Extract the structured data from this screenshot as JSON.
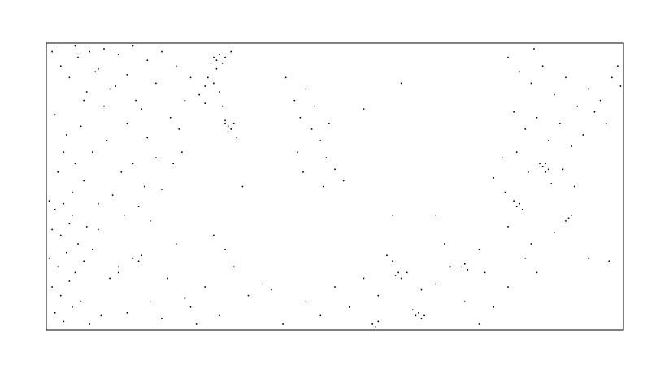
{
  "chart_data": {
    "type": "scatter",
    "color": "#000000",
    "xlim": [
      0,
      2
    ],
    "ylim": [
      0,
      1
    ],
    "x": [
      0.02,
      0.05,
      0.08,
      0.11,
      0.14,
      0.17,
      0.2,
      0.24,
      0.28,
      0.31,
      0.35,
      0.38,
      0.03,
      0.07,
      0.12,
      0.16,
      0.21,
      0.26,
      0.3,
      0.34,
      0.04,
      0.09,
      0.13,
      0.18,
      0.23,
      0.27,
      0.32,
      0.36,
      0.4,
      0.06,
      0.01,
      0.03,
      0.06,
      0.09,
      0.02,
      0.05,
      0.08,
      0.11,
      0.14,
      0.01,
      0.04,
      0.07,
      0.1,
      0.13,
      0.16,
      0.02,
      0.05,
      0.08,
      0.12,
      0.03,
      0.06,
      0.09,
      0.15,
      0.19,
      0.22,
      0.25,
      0.1,
      0.18,
      0.44,
      0.47,
      0.1,
      0.15,
      0.2,
      0.25,
      0.3,
      0.35,
      0.4,
      0.45,
      0.5,
      0.55,
      0.18,
      0.28,
      0.38,
      0.48,
      0.22,
      0.33,
      0.43,
      0.53,
      0.13,
      0.46,
      0.57,
      0.58,
      0.59,
      0.6,
      0.61,
      0.59,
      0.62,
      0.64,
      0.56,
      0.6,
      0.62,
      0.63,
      0.64,
      0.63,
      0.62,
      0.65,
      0.61,
      0.66,
      0.55,
      0.58,
      0.83,
      0.86,
      0.88,
      0.9,
      0.92,
      0.95,
      0.97,
      1.0,
      0.87,
      0.93,
      0.98,
      1.03,
      0.89,
      0.96,
      1.1,
      1.23,
      1.6,
      1.64,
      1.68,
      1.72,
      1.76,
      1.8,
      1.84,
      1.88,
      1.92,
      1.96,
      1.99,
      1.62,
      1.66,
      1.7,
      1.74,
      1.78,
      1.82,
      1.86,
      1.9,
      1.94,
      1.58,
      1.63,
      1.67,
      1.71,
      1.75,
      1.79,
      1.55,
      1.59,
      1.83,
      1.69,
      1.72,
      1.73,
      1.74,
      1.73,
      1.63,
      1.64,
      1.65,
      1.62,
      1.81,
      1.82,
      1.8,
      1.6,
      1.68,
      1.76,
      1.66,
      1.7,
      0.9,
      0.95,
      1.0,
      1.05,
      1.1,
      1.15,
      1.2,
      1.25,
      1.3,
      1.35,
      1.4,
      1.45,
      1.5,
      1.13,
      1.14,
      1.15,
      1.28,
      1.29,
      1.3,
      1.31,
      1.27,
      1.44,
      1.45,
      1.46,
      1.21,
      1.22,
      1.23,
      1.18,
      1.38,
      1.52,
      0.25,
      0.3,
      0.32,
      0.36,
      0.4,
      0.45,
      0.5,
      0.55,
      0.6,
      0.65,
      0.7,
      0.75,
      0.33,
      0.42,
      0.52,
      0.62,
      0.28,
      0.48,
      0.58,
      0.78,
      0.82,
      1.35,
      1.6,
      1.55,
      1.5,
      1.88,
      1.95,
      1.2,
      0.68,
      1.98
    ],
    "values": [
      0.97,
      0.92,
      0.88,
      0.95,
      0.83,
      0.9,
      0.78,
      0.85,
      0.72,
      0.8,
      0.67,
      0.6,
      0.75,
      0.68,
      0.71,
      0.62,
      0.66,
      0.55,
      0.58,
      0.5,
      0.55,
      0.48,
      0.52,
      0.44,
      0.47,
      0.4,
      0.43,
      0.38,
      0.49,
      0.62,
      0.45,
      0.42,
      0.44,
      0.4,
      0.35,
      0.33,
      0.37,
      0.3,
      0.36,
      0.25,
      0.22,
      0.27,
      0.2,
      0.24,
      0.28,
      0.15,
      0.12,
      0.17,
      0.1,
      0.06,
      0.03,
      0.08,
      0.02,
      0.05,
      0.18,
      0.22,
      0.58,
      0.35,
      0.58,
      0.62,
      0.99,
      0.97,
      0.98,
      0.96,
      0.99,
      0.94,
      0.97,
      0.92,
      0.88,
      0.85,
      0.91,
      0.89,
      0.86,
      0.8,
      0.84,
      0.77,
      0.74,
      0.82,
      0.8,
      0.7,
      0.93,
      0.95,
      0.94,
      0.96,
      0.93,
      0.91,
      0.95,
      0.97,
      0.88,
      0.83,
      0.72,
      0.71,
      0.7,
      0.69,
      0.73,
      0.72,
      0.78,
      0.67,
      0.79,
      0.86,
      0.88,
      0.8,
      0.74,
      0.84,
      0.7,
      0.66,
      0.6,
      0.56,
      0.62,
      0.78,
      0.72,
      0.52,
      0.55,
      0.5,
      0.77,
      0.86,
      0.95,
      0.9,
      0.86,
      0.92,
      0.82,
      0.88,
      0.78,
      0.84,
      0.8,
      0.88,
      0.85,
      0.76,
      0.7,
      0.74,
      0.66,
      0.72,
      0.64,
      0.68,
      0.76,
      0.72,
      0.6,
      0.62,
      0.55,
      0.58,
      0.51,
      0.56,
      0.53,
      0.48,
      0.5,
      0.98,
      0.57,
      0.58,
      0.56,
      0.55,
      0.43,
      0.44,
      0.42,
      0.45,
      0.39,
      0.4,
      0.38,
      0.36,
      0.3,
      0.34,
      0.25,
      0.2,
      0.1,
      0.05,
      0.15,
      0.08,
      0.18,
      0.12,
      0.24,
      0.2,
      0.14,
      0.16,
      0.22,
      0.1,
      0.28,
      0.02,
      0.01,
      0.03,
      0.05,
      0.06,
      0.04,
      0.05,
      0.07,
      0.22,
      0.23,
      0.21,
      0.19,
      0.2,
      0.18,
      0.26,
      0.3,
      0.2,
      0.2,
      0.25,
      0.24,
      0.1,
      0.04,
      0.3,
      0.08,
      0.15,
      0.05,
      0.22,
      0.12,
      0.16,
      0.26,
      0.18,
      0.02,
      0.28,
      0.06,
      0.11,
      0.33,
      0.14,
      0.02,
      0.4,
      0.15,
      0.08,
      0.02,
      0.25,
      0.24,
      0.4,
      0.5,
      0.92
    ]
  }
}
